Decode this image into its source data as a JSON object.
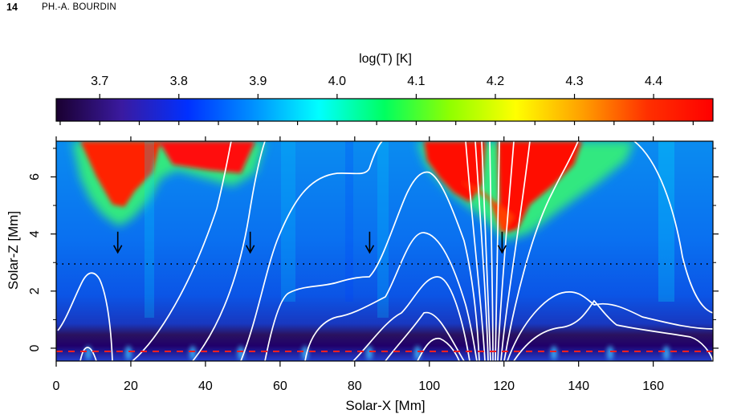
{
  "header": {
    "page_number": "14",
    "author": "PH.-A. BOURDIN"
  },
  "figure": {
    "colorbar": {
      "label": "log(T) [K]",
      "ticks": [
        "3.7",
        "3.8",
        "3.9",
        "4.0",
        "4.1",
        "4.2",
        "4.3",
        "4.4"
      ],
      "tick_values": [
        3.7,
        3.8,
        3.9,
        4.0,
        4.1,
        4.2,
        4.3,
        4.4
      ],
      "range": [
        3.645,
        4.475
      ],
      "colormap": [
        "#1a0030",
        "#3a1aa0",
        "#0030ff",
        "#0090ff",
        "#00ffff",
        "#00ff60",
        "#90ff00",
        "#ffff00",
        "#ffa000",
        "#ff3000",
        "#ff0000"
      ]
    },
    "x_axis": {
      "label": "Solar-X [Mm]",
      "ticks": [
        "0",
        "20",
        "40",
        "60",
        "80",
        "100",
        "120",
        "140",
        "160"
      ],
      "tick_values": [
        0,
        20,
        40,
        60,
        80,
        100,
        120,
        140,
        160
      ],
      "range": [
        0,
        176
      ]
    },
    "y_axis": {
      "label": "Solar-Z [Mm]",
      "ticks": [
        "0",
        "2",
        "4",
        "6"
      ],
      "tick_values": [
        0,
        2,
        4,
        6
      ],
      "range": [
        -0.45,
        7.25
      ]
    },
    "annotations": {
      "arrow_x": [
        16.5,
        52,
        84,
        119.5
      ],
      "arrow_tip_z": 3.35,
      "dotted_line_z": 3.0,
      "dashed_line_z": 0.0
    }
  }
}
